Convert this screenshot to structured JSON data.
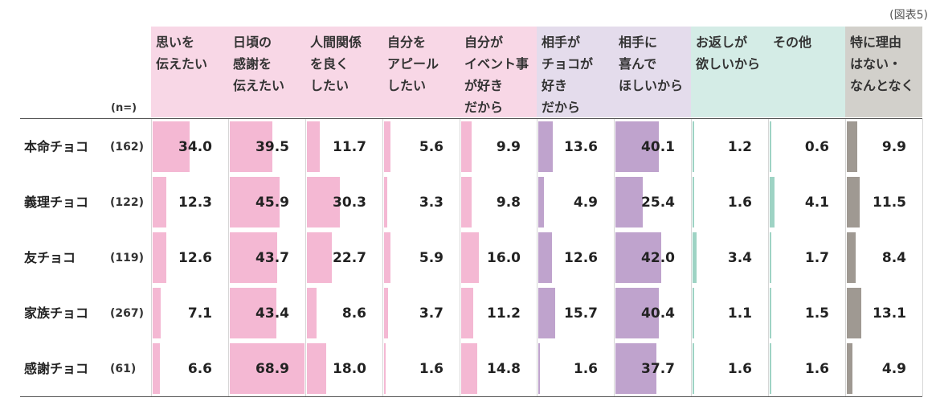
{
  "figure_label": "(図表5)",
  "n_header": "(n=)",
  "colors": {
    "pink_header": "#f8d7e6",
    "pink_bar": "#f4b8d3",
    "purple_header": "#e4dcec",
    "purple_bar": "#bfa3cd",
    "teal_header": "#d4ece6",
    "teal_bar": "#9ed3c4",
    "gray_header": "#d2d0cb",
    "gray_bar": "#9f9992"
  },
  "chart_data": {
    "type": "table",
    "title": "",
    "columns": [
      {
        "label": "思いを\n伝えたい",
        "group": "pink"
      },
      {
        "label": "日頃の\n感謝を\n伝えたい",
        "group": "pink"
      },
      {
        "label": "人間関係\nを良く\nしたい",
        "group": "pink"
      },
      {
        "label": "自分を\nアピール\nしたい",
        "group": "pink"
      },
      {
        "label": "自分が\nイベント事\nが好き\nだから",
        "group": "pink"
      },
      {
        "label": "相手が\nチョコが\n好き\nだから",
        "group": "purple"
      },
      {
        "label": "相手に\n喜んで\nほしいから",
        "group": "purple"
      },
      {
        "label": "お返しが\n欲しいから",
        "group": "teal"
      },
      {
        "label": "その他",
        "group": "teal"
      },
      {
        "label": "特に理由\nはない・\nなんとなく",
        "group": "gray"
      }
    ],
    "rows": [
      {
        "label": "本命チョコ",
        "n": "(162)",
        "values": [
          34.0,
          39.5,
          11.7,
          5.6,
          9.9,
          13.6,
          40.1,
          1.2,
          0.6,
          9.9
        ],
        "display": [
          "34.0",
          "39.5",
          "11.7",
          "5.6",
          "9.9",
          "13.6",
          "40.1",
          "1.2",
          "0.6",
          "9.9"
        ]
      },
      {
        "label": "義理チョコ",
        "n": "(122)",
        "values": [
          12.3,
          45.9,
          30.3,
          3.3,
          9.8,
          4.9,
          25.4,
          1.6,
          4.1,
          11.5
        ],
        "display": [
          "12.3",
          "45.9",
          "30.3",
          "3.3",
          "9.8",
          "4.9",
          "25.4",
          "1.6",
          "4.1",
          "11.5"
        ]
      },
      {
        "label": "友チョコ",
        "n": "(119)",
        "values": [
          12.6,
          43.7,
          22.7,
          5.9,
          16.0,
          12.6,
          42.0,
          3.4,
          1.7,
          8.4
        ],
        "display": [
          "12.6",
          "43.7",
          "22.7",
          "5.9",
          "16.0",
          "12.6",
          "42.0",
          "3.4",
          "1.7",
          "8.4"
        ]
      },
      {
        "label": "家族チョコ",
        "n": "(267)",
        "values": [
          7.1,
          43.4,
          8.6,
          3.7,
          11.2,
          15.7,
          40.4,
          1.1,
          1.5,
          13.1
        ],
        "display": [
          "7.1",
          "43.4",
          "8.6",
          "3.7",
          "11.2",
          "15.7",
          "40.4",
          "1.1",
          "1.5",
          "13.1"
        ]
      },
      {
        "label": "感謝チョコ",
        "n": "(61)",
        "values": [
          6.6,
          68.9,
          18.0,
          1.6,
          14.8,
          1.6,
          37.7,
          1.6,
          1.6,
          4.9
        ],
        "display": [
          "6.6",
          "68.9",
          "18.0",
          "1.6",
          "14.8",
          "1.6",
          "37.7",
          "1.6",
          "1.6",
          "4.9"
        ]
      }
    ]
  }
}
